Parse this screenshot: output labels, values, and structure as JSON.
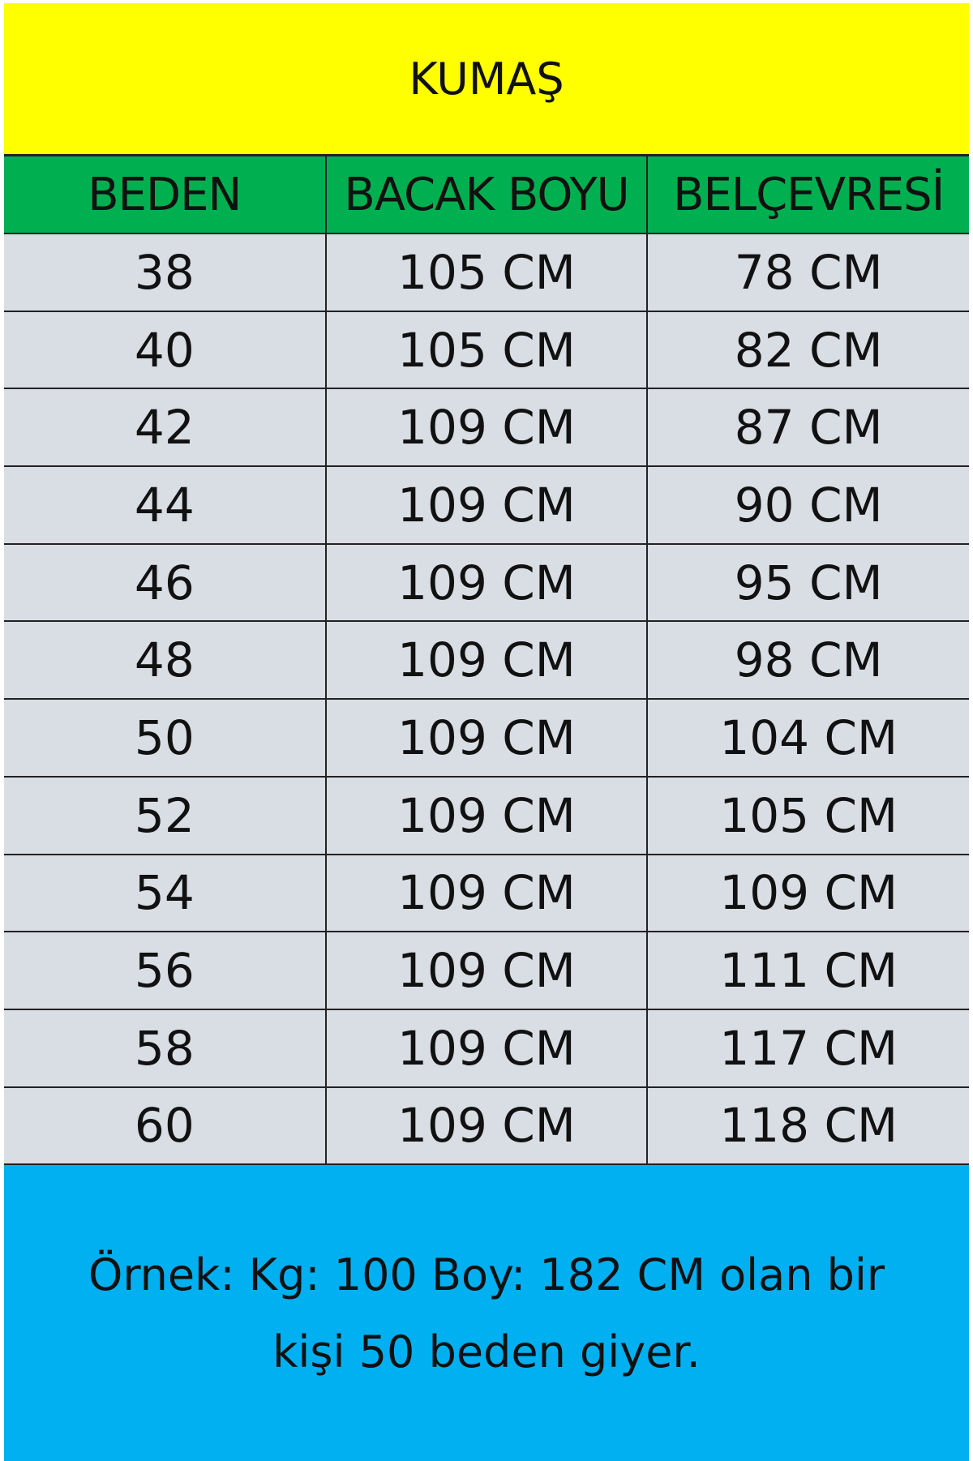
{
  "title": "KUMAŞ",
  "colors": {
    "title_bg": "#ffff00",
    "header_bg": "#00b050",
    "row_bg": "#d9dde4",
    "note_bg": "#00b0f0"
  },
  "headers": [
    "BEDEN",
    "BACAK BOYU",
    "BELÇEVRESİ"
  ],
  "rows": [
    [
      "38",
      "105 CM",
      "78 CM"
    ],
    [
      "40",
      "105 CM",
      "82 CM"
    ],
    [
      "42",
      "109 CM",
      "87 CM"
    ],
    [
      "44",
      "109 CM",
      "90 CM"
    ],
    [
      "46",
      "109 CM",
      "95 CM"
    ],
    [
      "48",
      "109 CM",
      "98 CM"
    ],
    [
      "50",
      "109 CM",
      "104 CM"
    ],
    [
      "52",
      "109 CM",
      "105 CM"
    ],
    [
      "54",
      "109 CM",
      "109 CM"
    ],
    [
      "56",
      "109 CM",
      "111 CM"
    ],
    [
      "58",
      "109 CM",
      "117 CM"
    ],
    [
      "60",
      "109 CM",
      "118 CM"
    ]
  ],
  "note": {
    "line1": "Örnek: Kg: 100 Boy: 182 CM olan bir",
    "line2": "kişi 50 beden giyer."
  }
}
